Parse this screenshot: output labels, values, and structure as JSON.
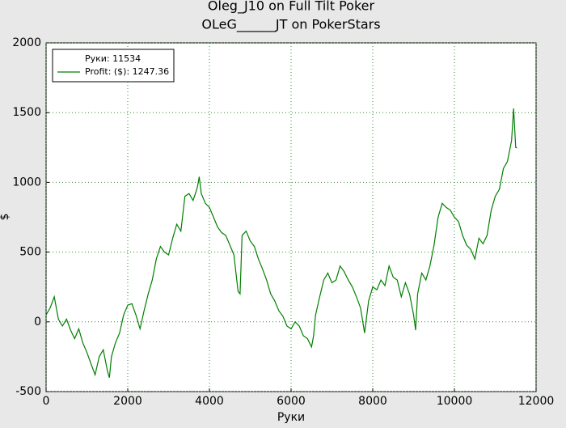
{
  "chart_data": {
    "type": "line",
    "title": "Oleg_J10 on Full Tilt Poker",
    "subtitle": "OLeG______JT on PokerStars",
    "xlabel": "Руки",
    "ylabel": "$",
    "legend_note": "Руки: 11534",
    "x": [
      0,
      100,
      200,
      300,
      400,
      500,
      600,
      700,
      800,
      900,
      1000,
      1100,
      1200,
      1300,
      1400,
      1500,
      1550,
      1600,
      1700,
      1800,
      1900,
      2000,
      2100,
      2200,
      2300,
      2400,
      2500,
      2600,
      2700,
      2800,
      2900,
      3000,
      3100,
      3200,
      3300,
      3400,
      3500,
      3600,
      3700,
      3750,
      3800,
      3900,
      4000,
      4100,
      4200,
      4300,
      4400,
      4500,
      4600,
      4700,
      4750,
      4800,
      4900,
      5000,
      5100,
      5200,
      5300,
      5400,
      5500,
      5600,
      5700,
      5800,
      5900,
      6000,
      6100,
      6200,
      6300,
      6400,
      6500,
      6550,
      6600,
      6700,
      6800,
      6900,
      7000,
      7100,
      7200,
      7300,
      7400,
      7500,
      7600,
      7700,
      7800,
      7900,
      8000,
      8100,
      8200,
      8300,
      8400,
      8500,
      8600,
      8700,
      8800,
      8900,
      9000,
      9050,
      9100,
      9200,
      9300,
      9400,
      9500,
      9600,
      9700,
      9800,
      9900,
      10000,
      10100,
      10200,
      10300,
      10400,
      10500,
      10600,
      10700,
      10800,
      10900,
      11000,
      11100,
      11200,
      11300,
      11400,
      11450,
      11500,
      11534
    ],
    "series": [
      {
        "name": "Profit: ($): 1247.36",
        "color": "#007f00",
        "values": [
          50,
          100,
          180,
          20,
          -30,
          20,
          -60,
          -120,
          -50,
          -150,
          -220,
          -300,
          -380,
          -250,
          -200,
          -350,
          -400,
          -250,
          -150,
          -80,
          50,
          120,
          130,
          50,
          -50,
          80,
          200,
          300,
          450,
          540,
          500,
          480,
          600,
          700,
          650,
          900,
          920,
          870,
          960,
          1040,
          920,
          850,
          820,
          750,
          680,
          640,
          620,
          550,
          480,
          220,
          200,
          620,
          650,
          580,
          540,
          450,
          380,
          300,
          200,
          150,
          80,
          40,
          -30,
          -50,
          0,
          -30,
          -100,
          -120,
          -180,
          -100,
          50,
          180,
          300,
          350,
          280,
          300,
          400,
          360,
          300,
          250,
          180,
          100,
          -80,
          150,
          250,
          230,
          300,
          260,
          400,
          320,
          300,
          180,
          280,
          200,
          50,
          -60,
          200,
          350,
          300,
          400,
          550,
          750,
          850,
          820,
          800,
          750,
          720,
          620,
          550,
          520,
          450,
          600,
          560,
          620,
          800,
          900,
          950,
          1100,
          1150,
          1300,
          1530,
          1250,
          1247.36
        ]
      }
    ],
    "xlim": [
      0,
      12000
    ],
    "ylim": [
      -500,
      2000
    ],
    "xticks": [
      0,
      2000,
      4000,
      6000,
      8000,
      10000,
      12000
    ],
    "yticks": [
      -500,
      0,
      500,
      1000,
      1500,
      2000
    ],
    "grid": true,
    "legend": "upper left"
  }
}
